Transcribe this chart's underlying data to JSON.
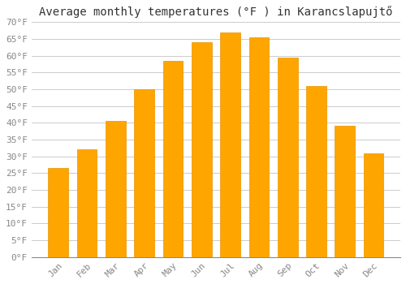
{
  "title": "Average monthly temperatures (°F ) in Karancslapujtő",
  "months": [
    "Jan",
    "Feb",
    "Mar",
    "Apr",
    "May",
    "Jun",
    "Jul",
    "Aug",
    "Sep",
    "Oct",
    "Nov",
    "Dec"
  ],
  "values": [
    26.5,
    32.0,
    40.5,
    50.0,
    58.5,
    64.0,
    67.0,
    65.5,
    59.5,
    51.0,
    39.0,
    31.0
  ],
  "bar_color": "#FFA500",
  "bar_edge_color": "#E89400",
  "background_color": "#ffffff",
  "grid_color": "#cccccc",
  "ylim": [
    0,
    70
  ],
  "ytick_step": 5,
  "title_fontsize": 10,
  "tick_fontsize": 8,
  "font_family": "monospace"
}
